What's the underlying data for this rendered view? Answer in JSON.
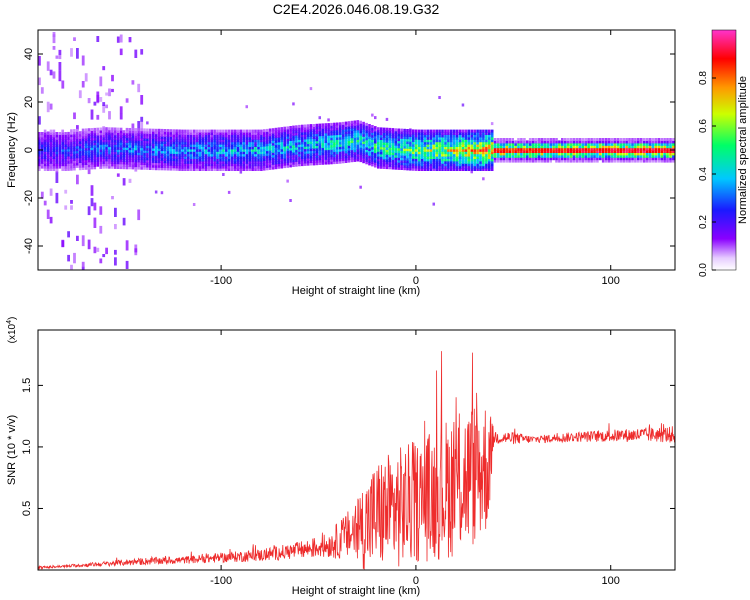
{
  "title": "C2E4.2026.046.08.19.G32",
  "chart_data": [
    {
      "type": "heatmap",
      "name": "spectrogram",
      "xlabel": "Height of straight line (km)",
      "ylabel": "Frequency (Hz)",
      "xlim": [
        -194,
        133
      ],
      "ylim": [
        -50,
        50
      ],
      "xticks": [
        -100,
        0,
        100
      ],
      "xtick_labels": [
        "-100",
        "0",
        "100"
      ],
      "yticks": [
        -40,
        -20,
        0,
        20,
        40
      ],
      "ytick_labels": [
        "-40",
        "-20",
        "0",
        "20",
        "40"
      ],
      "colorbar": {
        "label": "Normalized spectral amplitude",
        "range": [
          0,
          1
        ],
        "ticks": [
          0.0,
          0.2,
          0.4,
          0.6,
          0.8
        ],
        "tick_labels": [
          "0.0",
          "0.2",
          "0.4",
          "0.6",
          "0.8"
        ],
        "colormap": [
          "#ffffff",
          "#8a00ff",
          "#1a1aff",
          "#00c8ff",
          "#00ff66",
          "#ccff00",
          "#ff9900",
          "#ff0000",
          "#ff33cc"
        ]
      },
      "ridge": {
        "description_points_x": [
          -180,
          -160,
          -120,
          -80,
          -60,
          -40,
          -30,
          -20,
          0,
          20,
          35,
          60,
          100,
          133
        ],
        "center_freq": [
          0,
          1,
          0,
          0,
          2,
          3,
          4,
          1,
          0,
          0,
          0,
          0,
          0,
          0
        ],
        "peak_amplitude": [
          0.3,
          0.35,
          0.4,
          0.45,
          0.45,
          0.5,
          0.5,
          0.55,
          0.65,
          0.75,
          0.85,
          0.85,
          0.9,
          0.9
        ]
      }
    },
    {
      "type": "line",
      "name": "snr",
      "xlabel": "Height of straight line (km)",
      "ylabel": "SNR (10 * v/v)",
      "exponent_label": "(x10",
      "exponent_power": "4",
      "exponent_close": ")",
      "xlim": [
        -194,
        133
      ],
      "ylim": [
        0,
        1.95
      ],
      "xticks": [
        -100,
        0,
        100
      ],
      "xtick_labels": [
        "-100",
        "0",
        "100"
      ],
      "yticks": [
        0.5,
        1.0,
        1.5
      ],
      "ytick_labels": [
        "0.5",
        "1.0",
        "1.5"
      ],
      "color": "#ee2c2c",
      "series": [
        {
          "name": "SNR",
          "x": [
            -194,
            -180,
            -160,
            -140,
            -120,
            -100,
            -80,
            -60,
            -45,
            -35,
            -25,
            -20,
            -10,
            0,
            10,
            20,
            30,
            37,
            40,
            50,
            60,
            80,
            100,
            120,
            133
          ],
          "base": [
            0.02,
            0.03,
            0.05,
            0.07,
            0.08,
            0.1,
            0.12,
            0.16,
            0.2,
            0.28,
            0.38,
            0.45,
            0.5,
            0.55,
            0.62,
            0.7,
            0.78,
            0.85,
            1.08,
            1.07,
            1.06,
            1.08,
            1.09,
            1.1,
            1.1
          ],
          "amp": [
            0.01,
            0.01,
            0.02,
            0.03,
            0.03,
            0.04,
            0.05,
            0.07,
            0.1,
            0.2,
            0.4,
            0.45,
            0.5,
            0.5,
            0.55,
            0.6,
            0.6,
            0.55,
            0.06,
            0.05,
            0.03,
            0.04,
            0.05,
            0.06,
            0.07
          ]
        }
      ]
    }
  ]
}
